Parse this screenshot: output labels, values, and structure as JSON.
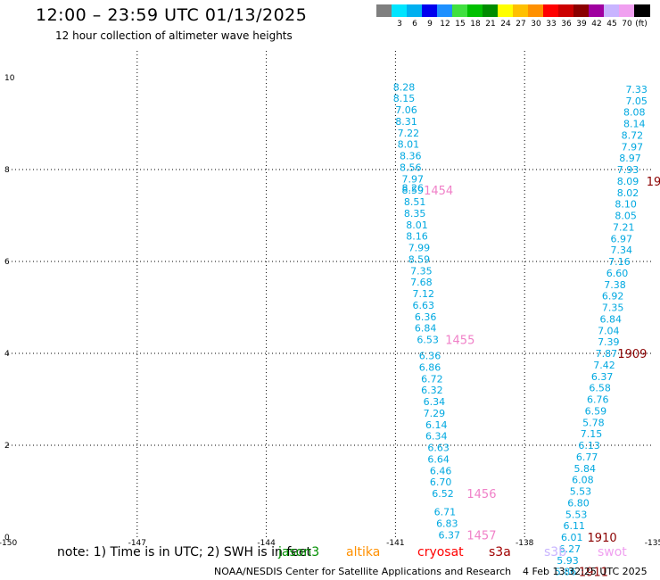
{
  "header": {
    "title": "12:00 – 23:59 UTC 01/13/2025",
    "subtitle": "12 hour collection of altimeter wave heights"
  },
  "colorbar": {
    "unit_label": "(ft)",
    "swatches": [
      {
        "color": "#7f7f7f",
        "label": ""
      },
      {
        "color": "#00e5ff",
        "label": "3"
      },
      {
        "color": "#00b0f0",
        "label": "6"
      },
      {
        "color": "#0000ee",
        "label": "9"
      },
      {
        "color": "#1e90ff",
        "label": "12"
      },
      {
        "color": "#40e040",
        "label": "15"
      },
      {
        "color": "#00c000",
        "label": "18"
      },
      {
        "color": "#008c00",
        "label": "21"
      },
      {
        "color": "#ffff00",
        "label": "24"
      },
      {
        "color": "#ffc000",
        "label": "27"
      },
      {
        "color": "#ff9000",
        "label": "30"
      },
      {
        "color": "#ff0000",
        "label": "33"
      },
      {
        "color": "#cc0000",
        "label": "36"
      },
      {
        "color": "#8b0000",
        "label": "39"
      },
      {
        "color": "#a000a0",
        "label": "42"
      },
      {
        "color": "#c8b4ff",
        "label": "45"
      },
      {
        "color": "#f0a0f0",
        "label": "70"
      },
      {
        "color": "#000000",
        "label": ""
      }
    ]
  },
  "chart_data": {
    "type": "scatter",
    "xlim": [
      -150,
      -135
    ],
    "ylim": [
      0,
      10
    ],
    "x_ticks": [
      "-150",
      "-147",
      "-144",
      "-141",
      "-138",
      "-135"
    ],
    "y_ticks": [
      "0",
      "2",
      "4",
      "6",
      "8",
      "10"
    ],
    "grid": true,
    "series": [
      {
        "color": "#00a8e0",
        "points": [
          {
            "x": -140.8,
            "y": 9.8,
            "label": "8.28"
          },
          {
            "x": -140.8,
            "y": 9.55,
            "label": "8.15"
          },
          {
            "x": -140.75,
            "y": 9.3,
            "label": "7.06"
          },
          {
            "x": -140.75,
            "y": 9.05,
            "label": "8.31"
          },
          {
            "x": -140.7,
            "y": 8.8,
            "label": "7.22"
          },
          {
            "x": -140.7,
            "y": 8.55,
            "label": "8.01"
          },
          {
            "x": -140.65,
            "y": 8.3,
            "label": "8.36"
          },
          {
            "x": -140.65,
            "y": 8.05,
            "label": "8.56"
          },
          {
            "x": -140.6,
            "y": 7.8,
            "label": "7.97"
          },
          {
            "x": -140.6,
            "y": 7.6,
            "label": "8.26"
          },
          {
            "x": -140.6,
            "y": 7.55,
            "label": "8.59"
          },
          {
            "x": -140.55,
            "y": 7.3,
            "label": "8.51"
          },
          {
            "x": -140.55,
            "y": 7.05,
            "label": "8.35"
          },
          {
            "x": -140.5,
            "y": 6.8,
            "label": "8.01"
          },
          {
            "x": -140.5,
            "y": 6.55,
            "label": "8.16"
          },
          {
            "x": -140.45,
            "y": 6.3,
            "label": "7.99"
          },
          {
            "x": -140.45,
            "y": 6.05,
            "label": "8.59"
          },
          {
            "x": -140.4,
            "y": 5.8,
            "label": "7.35"
          },
          {
            "x": -140.4,
            "y": 5.55,
            "label": "7.68"
          },
          {
            "x": -140.35,
            "y": 5.3,
            "label": "7.12"
          },
          {
            "x": -140.35,
            "y": 5.05,
            "label": "6.63"
          },
          {
            "x": -140.3,
            "y": 4.8,
            "label": "6.36"
          },
          {
            "x": -140.3,
            "y": 4.55,
            "label": "6.84"
          },
          {
            "x": -140.25,
            "y": 4.3,
            "label": "6.53"
          },
          {
            "x": -140.2,
            "y": 3.95,
            "label": "6.36"
          },
          {
            "x": -140.2,
            "y": 3.7,
            "label": "6.86"
          },
          {
            "x": -140.15,
            "y": 3.45,
            "label": "6.72"
          },
          {
            "x": -140.15,
            "y": 3.2,
            "label": "6.32"
          },
          {
            "x": -140.1,
            "y": 2.95,
            "label": "6.34"
          },
          {
            "x": -140.1,
            "y": 2.7,
            "label": "7.29"
          },
          {
            "x": -140.05,
            "y": 2.45,
            "label": "6.14"
          },
          {
            "x": -140.05,
            "y": 2.2,
            "label": "6.34"
          },
          {
            "x": -140.0,
            "y": 1.95,
            "label": "6.63"
          },
          {
            "x": -140.0,
            "y": 1.7,
            "label": "6.64"
          },
          {
            "x": -139.95,
            "y": 1.45,
            "label": "6.46"
          },
          {
            "x": -139.95,
            "y": 1.2,
            "label": "6.70"
          },
          {
            "x": -139.9,
            "y": 0.95,
            "label": "6.52"
          },
          {
            "x": -139.85,
            "y": 0.55,
            "label": "6.71"
          },
          {
            "x": -139.8,
            "y": 0.3,
            "label": "6.83"
          },
          {
            "x": -139.75,
            "y": 0.05,
            "label": "6.37"
          },
          {
            "x": -135.4,
            "y": 9.75,
            "label": "7.33"
          },
          {
            "x": -135.4,
            "y": 9.5,
            "label": "7.05"
          },
          {
            "x": -135.45,
            "y": 9.25,
            "label": "8.08"
          },
          {
            "x": -135.45,
            "y": 9.0,
            "label": "8.14"
          },
          {
            "x": -135.5,
            "y": 8.75,
            "label": "8.72"
          },
          {
            "x": -135.5,
            "y": 8.5,
            "label": "7.97"
          },
          {
            "x": -135.55,
            "y": 8.25,
            "label": "8.97"
          },
          {
            "x": -135.6,
            "y": 8.0,
            "label": "7.93"
          },
          {
            "x": -135.6,
            "y": 7.75,
            "label": "8.09"
          },
          {
            "x": -135.6,
            "y": 7.5,
            "label": "8.02"
          },
          {
            "x": -135.65,
            "y": 7.25,
            "label": "8.10"
          },
          {
            "x": -135.65,
            "y": 7.0,
            "label": "8.05"
          },
          {
            "x": -135.7,
            "y": 6.75,
            "label": "7.21"
          },
          {
            "x": -135.75,
            "y": 6.5,
            "label": "6.97"
          },
          {
            "x": -135.75,
            "y": 6.25,
            "label": "7.34"
          },
          {
            "x": -135.8,
            "y": 6.0,
            "label": "7.16"
          },
          {
            "x": -135.85,
            "y": 5.75,
            "label": "6.60"
          },
          {
            "x": -135.9,
            "y": 5.5,
            "label": "7.38"
          },
          {
            "x": -135.95,
            "y": 5.25,
            "label": "6.92"
          },
          {
            "x": -135.95,
            "y": 5.0,
            "label": "7.35"
          },
          {
            "x": -136.0,
            "y": 4.75,
            "label": "6.84"
          },
          {
            "x": -136.05,
            "y": 4.5,
            "label": "7.04"
          },
          {
            "x": -136.05,
            "y": 4.25,
            "label": "7.39"
          },
          {
            "x": -136.1,
            "y": 4.0,
            "label": "7.87"
          },
          {
            "x": -136.15,
            "y": 3.75,
            "label": "7.42"
          },
          {
            "x": -136.2,
            "y": 3.5,
            "label": "6.37"
          },
          {
            "x": -136.25,
            "y": 3.25,
            "label": "6.58"
          },
          {
            "x": -136.3,
            "y": 3.0,
            "label": "6.76"
          },
          {
            "x": -136.35,
            "y": 2.75,
            "label": "6.59"
          },
          {
            "x": -136.4,
            "y": 2.5,
            "label": "5.78"
          },
          {
            "x": -136.45,
            "y": 2.25,
            "label": "7.15"
          },
          {
            "x": -136.5,
            "y": 2.0,
            "label": "6.13"
          },
          {
            "x": -136.55,
            "y": 1.75,
            "label": "6.77"
          },
          {
            "x": -136.6,
            "y": 1.5,
            "label": "5.84"
          },
          {
            "x": -136.65,
            "y": 1.25,
            "label": "6.08"
          },
          {
            "x": -136.7,
            "y": 1.0,
            "label": "5.53"
          },
          {
            "x": -136.75,
            "y": 0.75,
            "label": "6.80"
          },
          {
            "x": -136.8,
            "y": 0.5,
            "label": "5.53"
          },
          {
            "x": -136.85,
            "y": 0.25,
            "label": "6.11"
          },
          {
            "x": -136.9,
            "y": 0.0,
            "label": "6.01"
          },
          {
            "x": -136.95,
            "y": -0.25,
            "label": "6.27"
          },
          {
            "x": -137.0,
            "y": -0.5,
            "label": "5.93"
          },
          {
            "x": -137.05,
            "y": -0.75,
            "label": "5.86"
          }
        ]
      }
    ],
    "annotations": [
      {
        "x": -140.0,
        "y": 7.55,
        "text": "1454",
        "color": "#f080c8"
      },
      {
        "x": -139.5,
        "y": 4.3,
        "text": "1455",
        "color": "#f080c8"
      },
      {
        "x": -139.0,
        "y": 0.95,
        "text": "1456",
        "color": "#f080c8"
      },
      {
        "x": -139.0,
        "y": 0.05,
        "text": "1457",
        "color": "#f080c8"
      },
      {
        "x": -135.0,
        "y": 7.75,
        "text": "19",
        "color": "#8b0000"
      },
      {
        "x": -135.5,
        "y": 4.0,
        "text": "1909",
        "color": "#8b0000"
      },
      {
        "x": -136.2,
        "y": 0.0,
        "text": "1910",
        "color": "#8b0000"
      },
      {
        "x": -136.4,
        "y": -0.75,
        "text": "1911",
        "color": "#8b0000"
      }
    ]
  },
  "notes": {
    "text": "note:  1) Time is in UTC; 2) SWH is in feet",
    "missions": [
      {
        "name": "jason3",
        "color": "#009000"
      },
      {
        "name": "altika",
        "color": "#ff9000"
      },
      {
        "name": "cryosat",
        "color": "#ff0000"
      },
      {
        "name": "s3a",
        "color": "#a00000"
      },
      {
        "name": "s3b",
        "color": "#c8b4ff"
      },
      {
        "name": "swot",
        "color": "#f0a0f0"
      }
    ]
  },
  "footer": {
    "credit": "NOAA/NESDIS Center for Satellite Applications and Research",
    "date": "4 Feb 13:32:25 UTC 2025"
  }
}
